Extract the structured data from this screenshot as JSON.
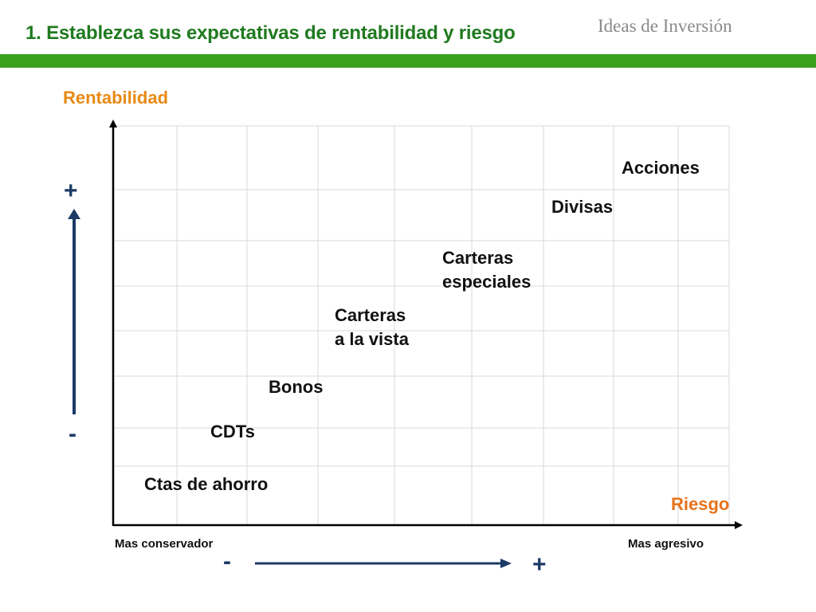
{
  "header": {
    "title": "1.  Establezca sus expectativas de rentabilidad y riesgo",
    "brand": "Ideas de Inversión",
    "bar_color": "#3aa01d"
  },
  "axes": {
    "y_label": "Rentabilidad",
    "x_label": "Riesgo",
    "y_plus": "+",
    "y_minus": "-",
    "x_minus": "-",
    "x_plus": "+",
    "x_left_caption": "Mas conservador",
    "x_right_caption": "Mas agresivo",
    "grid": true
  },
  "investments": [
    {
      "id": "acciones",
      "lines": [
        "Acciones"
      ]
    },
    {
      "id": "divisas",
      "lines": [
        "Divisas"
      ]
    },
    {
      "id": "carteras-especiales",
      "lines": [
        "Carteras",
        "especiales"
      ]
    },
    {
      "id": "carteras-vista",
      "lines": [
        "Carteras",
        "a la vista"
      ]
    },
    {
      "id": "bonos",
      "lines": [
        "Bonos"
      ]
    },
    {
      "id": "cdts",
      "lines": [
        "CDTs"
      ]
    },
    {
      "id": "ctas-ahorro",
      "lines": [
        "Ctas de ahorro"
      ]
    }
  ],
  "colors": {
    "title": "#1f7a1f",
    "axis_label": "#e88a14",
    "arrow": "#1c3a66",
    "grid": "#d9d9d9"
  }
}
